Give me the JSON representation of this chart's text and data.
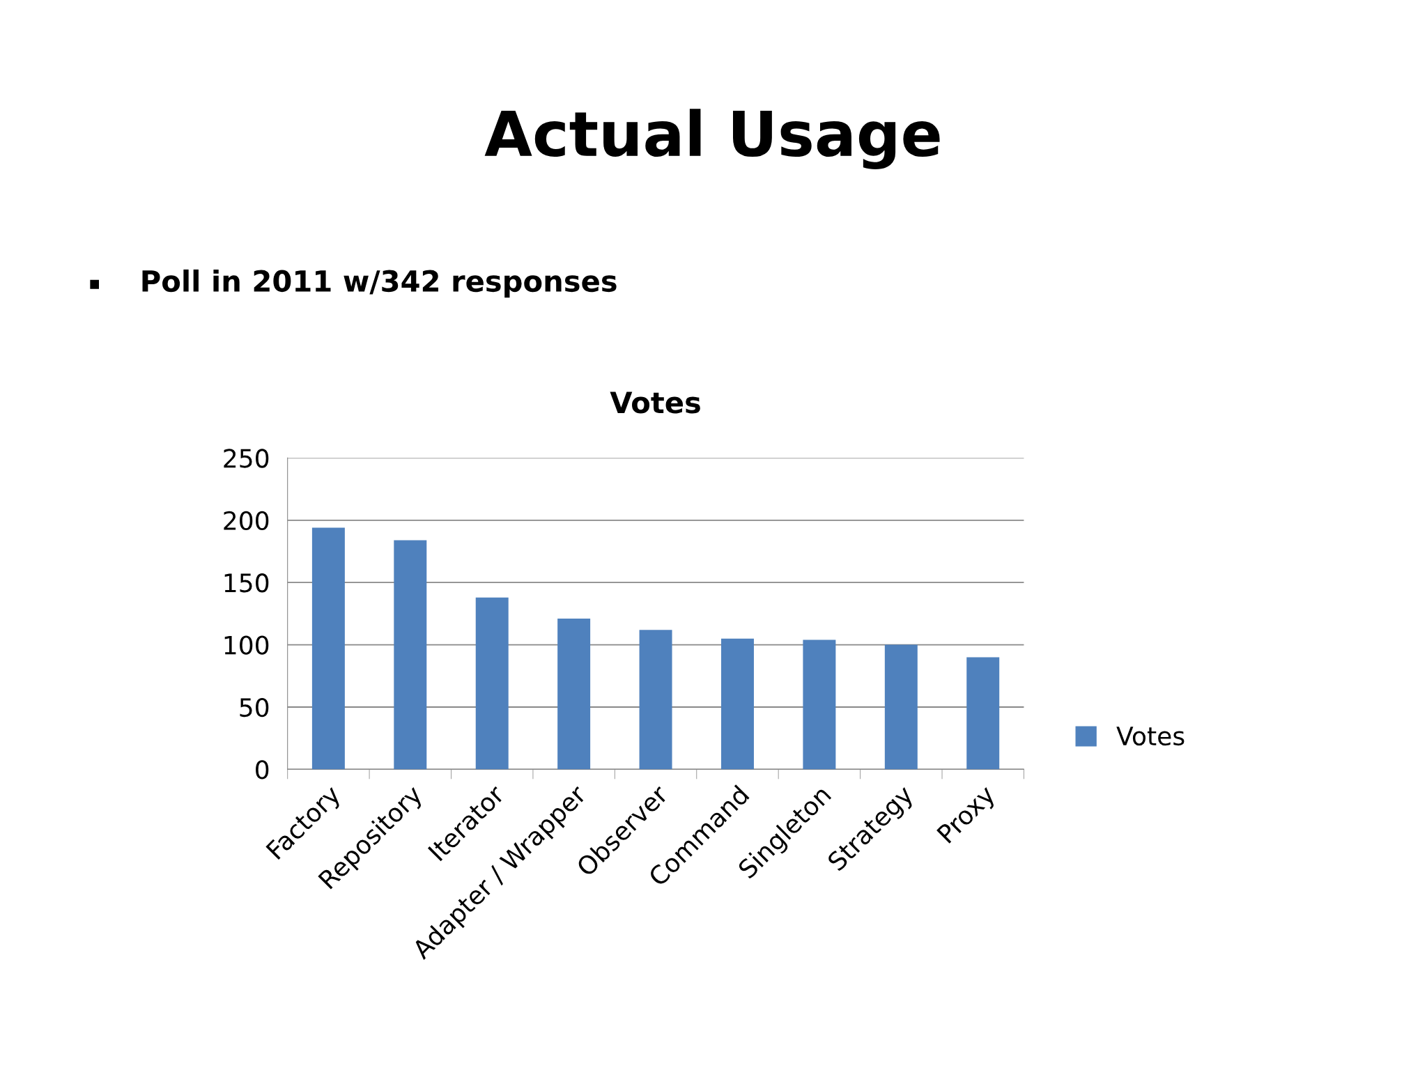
{
  "chart_data": {
    "type": "bar",
    "title": "Actual Usage",
    "subtitle": "Poll in 2011 w/342 responses",
    "annotations": [
      "Votes"
    ],
    "categories": [
      "Factory",
      "Repository",
      "Iterator",
      "Adapter / Wrapper",
      "Observer",
      "Command",
      "Singleton",
      "Strategy",
      "Proxy"
    ],
    "series": [
      {
        "name": "Votes",
        "color": "#4f81bd",
        "values": [
          194,
          184,
          138,
          121,
          112,
          105,
          104,
          100,
          90
        ]
      }
    ],
    "ylim": [
      0,
      250
    ],
    "yticks": [
      0,
      50,
      100,
      150,
      200,
      250
    ],
    "grid": "y",
    "legend": "right"
  }
}
